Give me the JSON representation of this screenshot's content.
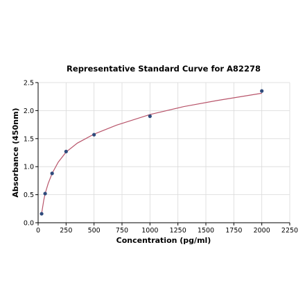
{
  "chart_data": {
    "type": "scatter",
    "title": "Representative Standard Curve for A82278",
    "xlabel": "Concentration (pg/ml)",
    "ylabel": "Absorbance (450nm)",
    "xlim": [
      0,
      2250
    ],
    "ylim": [
      0,
      2.5
    ],
    "xticks": [
      "0",
      "250",
      "500",
      "750",
      "1000",
      "1250",
      "1500",
      "1750",
      "2000",
      "2250"
    ],
    "yticks": [
      "0.0",
      "0.5",
      "1.0",
      "1.5",
      "2.0",
      "2.5"
    ],
    "grid": true,
    "series": [
      {
        "points": [
          {
            "x": 31.25,
            "y": 0.16
          },
          {
            "x": 62.5,
            "y": 0.52
          },
          {
            "x": 125,
            "y": 0.88
          },
          {
            "x": 250,
            "y": 1.27
          },
          {
            "x": 500,
            "y": 1.57
          },
          {
            "x": 1000,
            "y": 1.9
          },
          {
            "x": 2000,
            "y": 2.35
          }
        ],
        "color": "#2f4b7c"
      }
    ],
    "fit_curve": {
      "color": "#b8546a",
      "points": [
        {
          "x": 31.25,
          "y": 0.16
        },
        {
          "x": 50,
          "y": 0.4
        },
        {
          "x": 62.5,
          "y": 0.52
        },
        {
          "x": 90,
          "y": 0.7
        },
        {
          "x": 125,
          "y": 0.88
        },
        {
          "x": 180,
          "y": 1.08
        },
        {
          "x": 250,
          "y": 1.26
        },
        {
          "x": 350,
          "y": 1.42
        },
        {
          "x": 500,
          "y": 1.58
        },
        {
          "x": 700,
          "y": 1.74
        },
        {
          "x": 1000,
          "y": 1.93
        },
        {
          "x": 1300,
          "y": 2.07
        },
        {
          "x": 1600,
          "y": 2.18
        },
        {
          "x": 2000,
          "y": 2.31
        }
      ]
    }
  }
}
